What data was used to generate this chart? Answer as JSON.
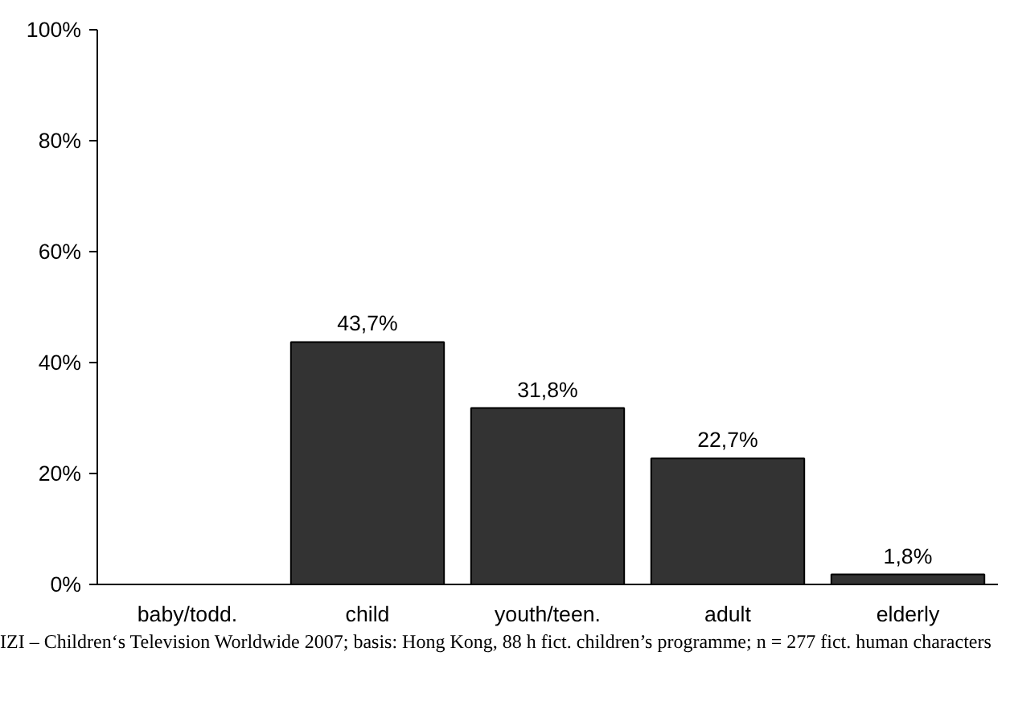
{
  "chart_data": {
    "type": "bar",
    "categories": [
      "baby/todd.",
      "child",
      "youth/teen.",
      "adult",
      "elderly"
    ],
    "values": [
      null,
      43.7,
      31.8,
      22.7,
      1.8
    ],
    "value_labels": [
      null,
      "43,7%",
      "31,8%",
      "22,7%",
      "1,8%"
    ],
    "color": "#333333",
    "ylim": [
      0,
      100
    ],
    "yticks": [
      {
        "value": 0,
        "label": "0%"
      },
      {
        "value": 20,
        "label": "20%"
      },
      {
        "value": 40,
        "label": "40%"
      },
      {
        "value": 60,
        "label": "60%"
      },
      {
        "value": 80,
        "label": "80%"
      },
      {
        "value": 100,
        "label": "100%"
      }
    ],
    "grid": false,
    "annotations": [
      "IZI – Children‘s Television Worldwide 2007; basis: Hong Kong, 88 h fict. children’s programme; n = 277 fict. human characters"
    ]
  }
}
